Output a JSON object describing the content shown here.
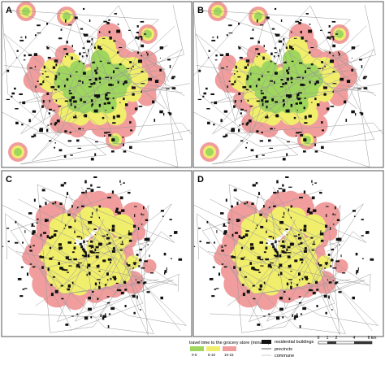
{
  "panels": [
    {
      "label": "A"
    },
    {
      "label": "B"
    },
    {
      "label": "C"
    },
    {
      "label": "D"
    }
  ],
  "legend": {
    "title": "travel time to the grocery store (minutes)",
    "travel_classes": [
      {
        "label": "0-5",
        "color": "#9fd65e"
      },
      {
        "label": "5-10",
        "color": "#f1ee6c"
      },
      {
        "label": "10-15",
        "color": "#f19d9d"
      }
    ],
    "layers": [
      {
        "label": "residential buildings"
      },
      {
        "label": "precincts"
      },
      {
        "label": "commune"
      }
    ]
  },
  "scale_bar": {
    "labels": [
      "0",
      "1",
      "2",
      "4",
      "6 km"
    ]
  }
}
